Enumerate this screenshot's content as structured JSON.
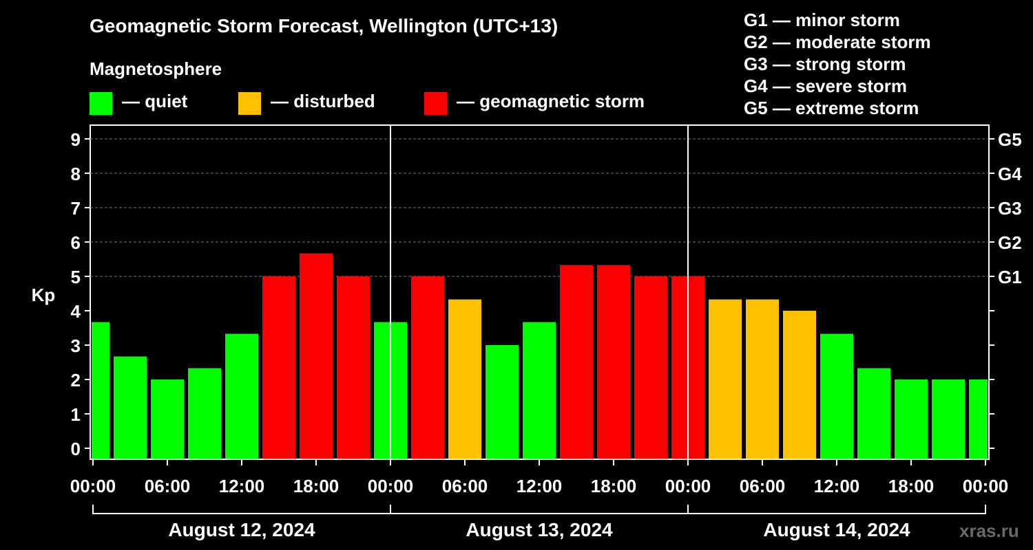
{
  "title": "Geomagnetic Storm Forecast, Wellington (UTC+13)",
  "magnetosphere": {
    "label": "Magnetosphere",
    "legend": [
      {
        "key": "quiet",
        "label": "— quiet",
        "color": "#00ff00"
      },
      {
        "key": "disturbed",
        "label": "— disturbed",
        "color": "#ffc000"
      },
      {
        "key": "storm",
        "label": "— geomagnetic storm",
        "color": "#ff0000"
      }
    ]
  },
  "storm_scale": [
    "G1 — minor storm",
    "G2 — moderate storm",
    "G3 — strong storm",
    "G4 — severe storm",
    "G5 — extreme storm"
  ],
  "watermark": "xras.ru",
  "colors": {
    "quiet": "#00ff00",
    "disturbed": "#ffc000",
    "storm": "#ff0000"
  },
  "chart_data": {
    "type": "bar",
    "title": "Geomagnetic Storm Forecast, Wellington (UTC+13)",
    "ylabel": "Kp",
    "ylim": [
      0,
      9
    ],
    "yticks": [
      "0",
      "1",
      "2",
      "3",
      "4",
      "5",
      "6",
      "7",
      "8",
      "9"
    ],
    "right_axis": [
      {
        "kp": 5,
        "label": "G1"
      },
      {
        "kp": 6,
        "label": "G2"
      },
      {
        "kp": 7,
        "label": "G3"
      },
      {
        "kp": 8,
        "label": "G4"
      },
      {
        "kp": 9,
        "label": "G5"
      }
    ],
    "xtick_labels": [
      "00:00",
      "06:00",
      "12:00",
      "18:00",
      "00:00",
      "06:00",
      "12:00",
      "18:00",
      "00:00",
      "06:00",
      "12:00",
      "18:00",
      "00:00"
    ],
    "days": [
      "August 12, 2024",
      "August 13, 2024",
      "August 14, 2024"
    ],
    "bar_interval_hours": 3,
    "values": [
      3.67,
      2.67,
      2.0,
      2.33,
      3.33,
      5.0,
      5.67,
      5.0,
      3.67,
      5.0,
      4.33,
      3.0,
      3.67,
      5.33,
      5.33,
      5.0,
      5.0,
      4.33,
      4.33,
      4.0,
      3.33,
      2.33,
      2.0,
      2.0,
      2.0
    ],
    "status": [
      "quiet",
      "quiet",
      "quiet",
      "quiet",
      "quiet",
      "storm",
      "storm",
      "storm",
      "quiet",
      "storm",
      "disturbed",
      "quiet",
      "quiet",
      "storm",
      "storm",
      "storm",
      "storm",
      "disturbed",
      "disturbed",
      "disturbed",
      "quiet",
      "quiet",
      "quiet",
      "quiet",
      "quiet"
    ],
    "grid": true
  }
}
